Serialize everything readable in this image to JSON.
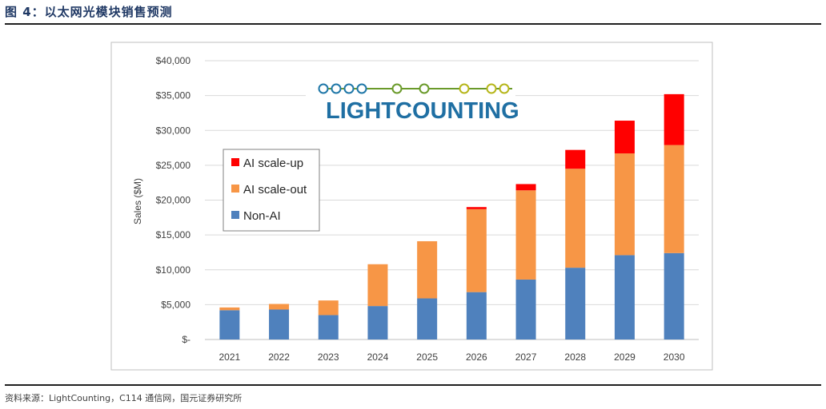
{
  "header": {
    "title": "图 4：以太网光模块销售预测"
  },
  "footer": {
    "source": "资料来源：LightCounting，C114 通信网，国元证券研究所"
  },
  "logo": {
    "text_light": "LIGHT",
    "text_counting": "COUNTING",
    "dot_colors": [
      "#1f77a8",
      "#1f77a8",
      "#1f77a8",
      "#1f77a8",
      "#6a9a2a",
      "#6a9a2a",
      "#b6b61a",
      "#b6b61a",
      "#b6b61a"
    ]
  },
  "chart_data": {
    "type": "bar",
    "stacked": true,
    "categories": [
      "2021",
      "2022",
      "2023",
      "2024",
      "2025",
      "2026",
      "2027",
      "2028",
      "2029",
      "2030"
    ],
    "series": [
      {
        "name": "Non-AI",
        "color": "#4f81bd",
        "values": [
          4200,
          4300,
          3500,
          4800,
          5900,
          6800,
          8600,
          10300,
          12100,
          12400
        ]
      },
      {
        "name": "AI scale-out",
        "color": "#f79646",
        "values": [
          400,
          800,
          2100,
          6000,
          8200,
          11900,
          12800,
          14200,
          14600,
          15500
        ]
      },
      {
        "name": "AI scale-up",
        "color": "#ff0000",
        "values": [
          0,
          0,
          0,
          0,
          0,
          300,
          900,
          2700,
          4700,
          7300
        ]
      }
    ],
    "ylabel": "Sales ($M)",
    "xlabel": "",
    "ylim": [
      0,
      40000
    ],
    "yticks": [
      0,
      5000,
      10000,
      15000,
      20000,
      25000,
      30000,
      35000,
      40000
    ],
    "ytick_labels": [
      "$-",
      "$5,000",
      "$10,000",
      "$15,000",
      "$20,000",
      "$25,000",
      "$30,000",
      "$35,000",
      "$40,000"
    ],
    "legend_order": [
      "AI scale-up",
      "AI scale-out",
      "Non-AI"
    ],
    "legend_position": "left",
    "grid": true
  }
}
